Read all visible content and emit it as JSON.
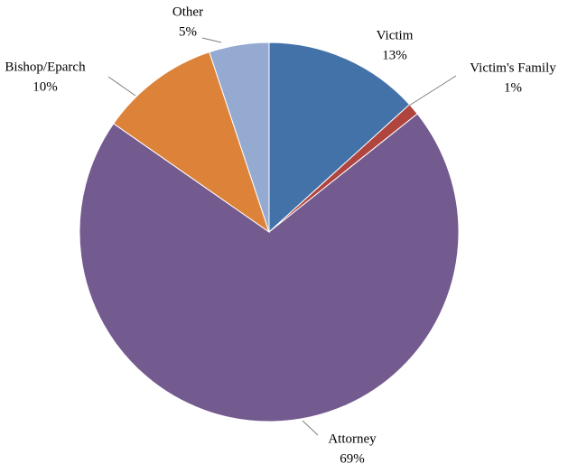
{
  "chart_data": {
    "type": "pie",
    "categories": [
      "Victim",
      "Victim's Family",
      "Attorney",
      "Bishop/Eparch",
      "Other"
    ],
    "values": [
      13,
      1,
      69,
      10,
      5
    ],
    "value_labels": [
      "13%",
      "1%",
      "69%",
      "10%",
      "5%"
    ],
    "colors": [
      "#4372a9",
      "#b0453f",
      "#735a8f",
      "#dc8239",
      "#94aad1"
    ]
  }
}
